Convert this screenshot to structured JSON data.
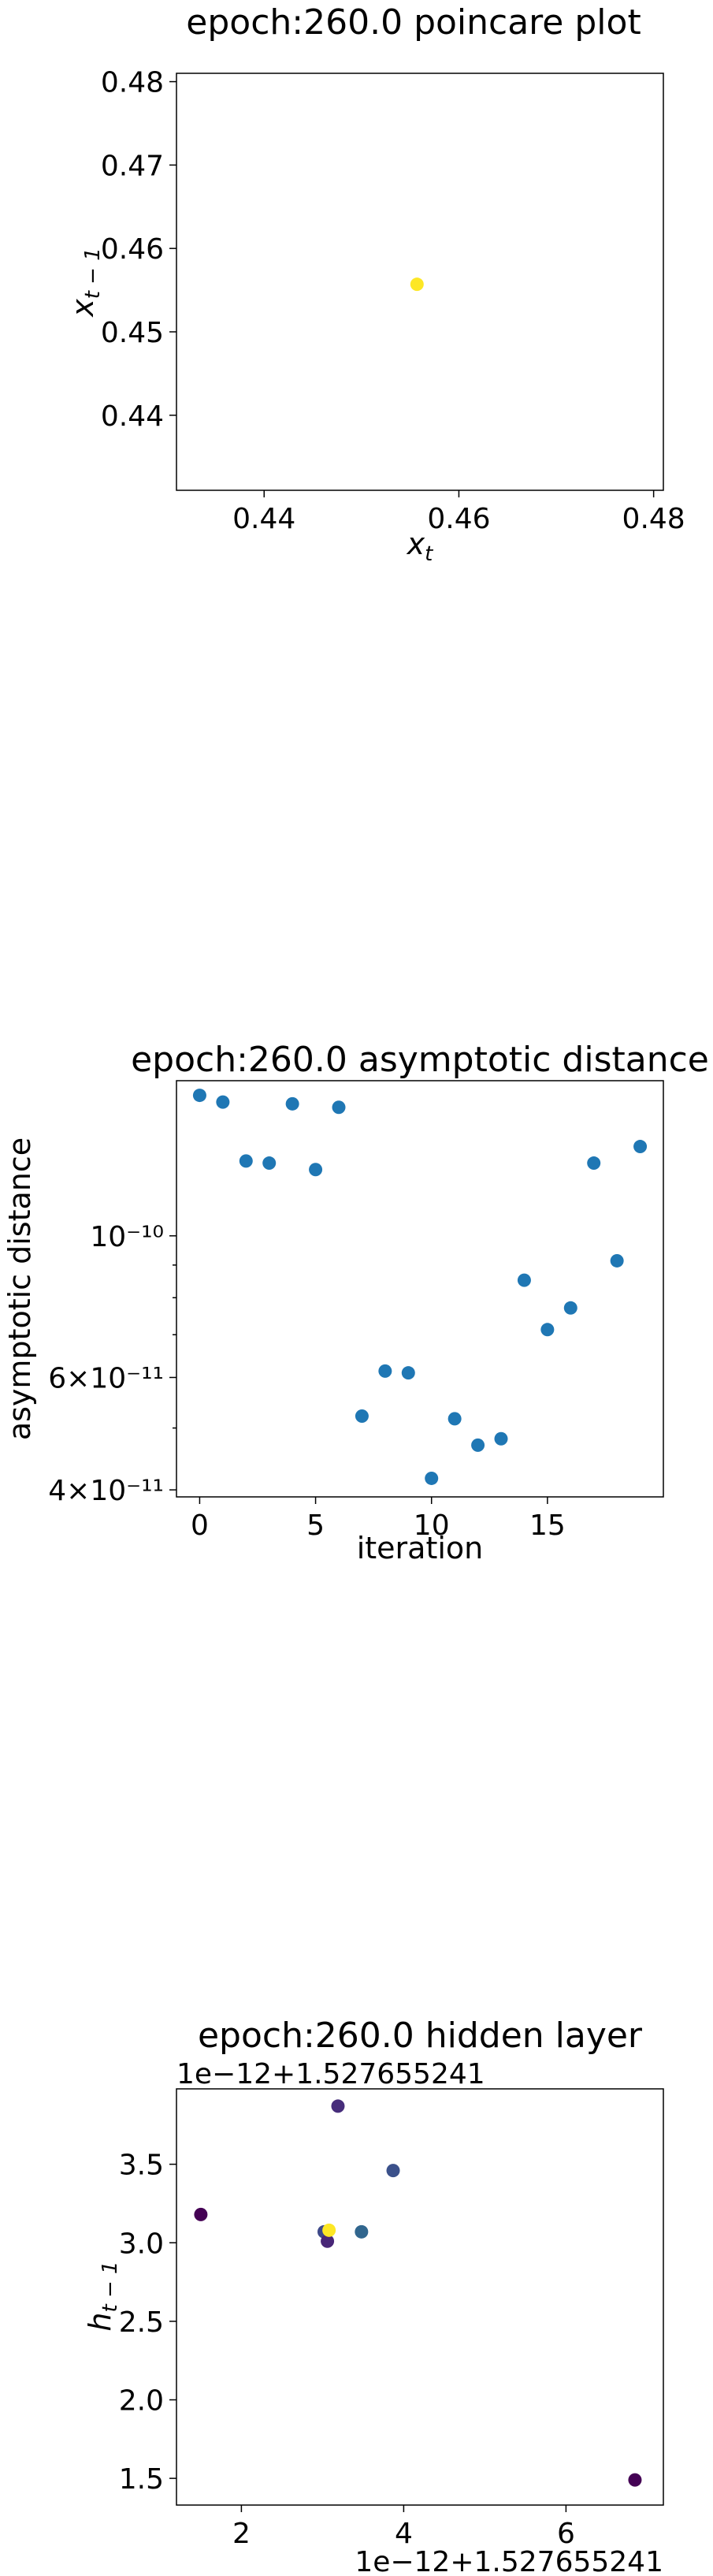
{
  "chart_data": [
    {
      "type": "scatter",
      "title": "epoch:260.0 poincare plot",
      "xlabel": "x_t",
      "ylabel": "x_{t-1}",
      "xlim": [
        0.431,
        0.481
      ],
      "ylim": [
        0.431,
        0.481
      ],
      "x_ticks": [
        0.44,
        0.46,
        0.48
      ],
      "x_tick_labels": [
        "0.44",
        "0.46",
        "0.48"
      ],
      "y_ticks": [
        0.44,
        0.45,
        0.46,
        0.47,
        0.48
      ],
      "y_tick_labels": [
        "0.44",
        "0.45",
        "0.46",
        "0.47",
        "0.48"
      ],
      "points": [
        {
          "x": 0.4557,
          "y": 0.4557,
          "color": "#fde725"
        }
      ]
    },
    {
      "type": "scatter",
      "title": "epoch:260.0 asymptotic distance",
      "xlabel": "iteration",
      "ylabel": "asymptotic distance",
      "xlim": [
        -1,
        20
      ],
      "ylim": [
        3.9e-11,
        1.75e-10
      ],
      "yscale": "log",
      "x_ticks": [
        0,
        5,
        10,
        15
      ],
      "x_tick_labels": [
        "0",
        "5",
        "10",
        "15"
      ],
      "y_ticks": [
        4e-11,
        6e-11,
        1e-10
      ],
      "y_tick_labels": [
        "4×10⁻¹¹",
        "6×10⁻¹¹",
        "10⁻¹⁰"
      ],
      "y_minor_ticks": [
        5e-11,
        7e-11,
        8e-11,
        9e-11
      ],
      "color": "#1f77b4",
      "x": [
        0,
        1,
        2,
        3,
        4,
        5,
        6,
        7,
        8,
        9,
        10,
        11,
        12,
        13,
        14,
        15,
        16,
        17,
        18,
        19
      ],
      "y": [
        1.66e-10,
        1.62e-10,
        1.31e-10,
        1.3e-10,
        1.61e-10,
        1.27e-10,
        1.59e-10,
        5.22e-11,
        6.14e-11,
        6.1e-11,
        4.17e-11,
        5.17e-11,
        4.7e-11,
        4.81e-11,
        8.52e-11,
        7.13e-11,
        7.71e-11,
        1.3e-10,
        9.14e-11,
        1.38e-10
      ]
    },
    {
      "type": "scatter",
      "title": "epoch:260.0 hidden layer",
      "xlabel": "",
      "ylabel": "h_{t-1}",
      "offset_text_y": "1e−12+1.527655241",
      "offset_text_x": "1e−12+1.527655241",
      "xlim": [
        1.2,
        7.2
      ],
      "ylim": [
        1.33,
        3.98
      ],
      "x_ticks": [
        2,
        4,
        6
      ],
      "x_tick_labels": [
        "2",
        "4",
        "6"
      ],
      "y_ticks": [
        1.5,
        2.0,
        2.5,
        3.0,
        3.5
      ],
      "y_tick_labels": [
        "1.5",
        "2.0",
        "2.5",
        "3.0",
        "3.5"
      ],
      "points": [
        {
          "x": 1.5,
          "y": 3.18,
          "color": "#440154"
        },
        {
          "x": 3.19,
          "y": 3.87,
          "color": "#472d7b"
        },
        {
          "x": 3.87,
          "y": 3.46,
          "color": "#3b518b"
        },
        {
          "x": 3.48,
          "y": 3.07,
          "color": "#31668e"
        },
        {
          "x": 3.02,
          "y": 3.07,
          "color": "#3e4989"
        },
        {
          "x": 3.06,
          "y": 3.01,
          "color": "#482677"
        },
        {
          "x": 3.08,
          "y": 3.08,
          "color": "#fde725"
        },
        {
          "x": 6.85,
          "y": 1.49,
          "color": "#440154"
        }
      ]
    }
  ]
}
